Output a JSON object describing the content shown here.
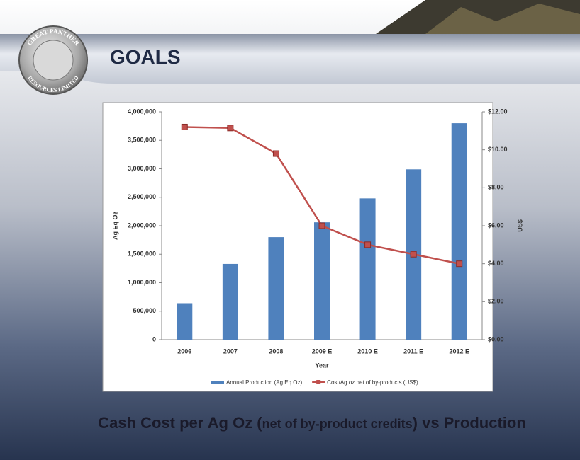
{
  "header": {
    "title": "GOALS",
    "logo_top": "GREAT PANTHER",
    "logo_bottom": "RESOURCES LIMITED"
  },
  "caption": [
    "Cash Cost per Ag Oz (",
    "net of by-product credits",
    ") vs Production"
  ],
  "chart_data": {
    "type": "bar_line",
    "categories": [
      "2006",
      "2007",
      "2008",
      "2009 E",
      "2010 E",
      "2011 E",
      "2012 E"
    ],
    "x_label": "Year",
    "y_label": "Ag Eq Oz",
    "y2_label": "US$",
    "series": [
      {
        "name": "Annual Production (Ag Eq Oz)",
        "color": "#4f81bd",
        "type": "bar",
        "values": [
          640000,
          1330000,
          1800000,
          2060000,
          2480000,
          2990000,
          3800000
        ]
      },
      {
        "name": "Cost/Ag oz net of by-products (US$)",
        "color": "#c0504d",
        "type": "line",
        "axis": "y2",
        "values": [
          11.2,
          11.15,
          9.8,
          6.0,
          5.0,
          4.5,
          4.0
        ]
      }
    ],
    "ylim": [
      0,
      4000000
    ],
    "yticks": [
      0,
      {
        "value": 500000,
        "label": "500,000"
      },
      {
        "value": 1000000,
        "label": "1,000,000"
      },
      {
        "value": 1500000,
        "label": "1,500,000"
      },
      {
        "value": 2000000,
        "label": "2,000,000"
      },
      {
        "value": 2500000,
        "label": "2,500,000"
      },
      {
        "value": 3000000,
        "label": "3,000,000"
      },
      {
        "value": 3500000,
        "label": "3,500,000"
      },
      {
        "value": 4000000,
        "label": "4,000,000"
      }
    ],
    "y2lim": [
      0,
      12
    ],
    "y2ticks": [
      {
        "value": 0,
        "label": "$0.00"
      },
      {
        "value": 2,
        "label": "$2.00"
      },
      {
        "value": 4,
        "label": "$4.00"
      },
      {
        "value": 6,
        "label": "$6.00"
      },
      {
        "value": 8,
        "label": "$8.00"
      },
      {
        "value": 10,
        "label": "$10.00"
      },
      {
        "value": 12,
        "label": "$12.00"
      }
    ],
    "grid": false,
    "legend": "bottom"
  }
}
